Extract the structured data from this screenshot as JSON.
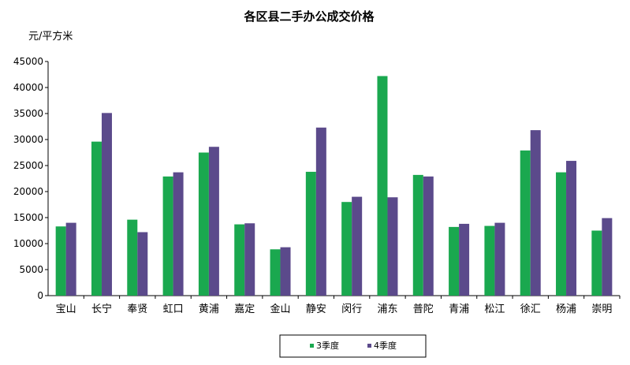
{
  "chart_data": {
    "type": "bar",
    "title": "各区县二手办公成交价格",
    "ylabel": "元/平方米",
    "xlabel": "",
    "ylim": [
      0,
      45000
    ],
    "yticks": [
      0,
      5000,
      10000,
      15000,
      20000,
      25000,
      30000,
      35000,
      40000,
      45000
    ],
    "grid": false,
    "legend_position": "bottom",
    "categories": [
      "宝山",
      "长宁",
      "奉贤",
      "虹口",
      "黄浦",
      "嘉定",
      "金山",
      "静安",
      "闵行",
      "浦东",
      "普陀",
      "青浦",
      "松江",
      "徐汇",
      "杨浦",
      "崇明"
    ],
    "series": [
      {
        "name": "3季度",
        "color": "#1aa84f",
        "values": [
          13300,
          29600,
          14600,
          22900,
          27500,
          13700,
          8900,
          23800,
          18000,
          42200,
          23200,
          13200,
          13400,
          27900,
          23700,
          12500
        ]
      },
      {
        "name": "4季度",
        "color": "#5b4a8b",
        "values": [
          14000,
          35100,
          12200,
          23700,
          28600,
          13900,
          9300,
          32300,
          19000,
          18900,
          22900,
          13800,
          14000,
          31800,
          25900,
          14900
        ]
      }
    ]
  }
}
